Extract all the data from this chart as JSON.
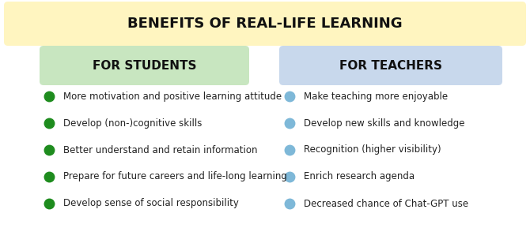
{
  "title": "BENEFITS OF REAL-LIFE LEARNING",
  "title_bg_color": "#FFF5C0",
  "title_fontsize": 13,
  "left_header": "FOR STUDENTS",
  "right_header": "FOR TEACHERS",
  "left_header_bg": "#C8E6C0",
  "right_header_bg": "#C8D8EC",
  "header_fontsize": 11,
  "left_items": [
    "More motivation and positive learning attitude",
    "Develop (non-)cognitive skills",
    "Better understand and retain information",
    "Prepare for future careers and life-long learning",
    "Develop sense of social responsibility"
  ],
  "right_items": [
    "Make teaching more enjoyable",
    "Develop new skills and knowledge",
    "Recognition (higher visibility)",
    "Enrich research agenda",
    "Decreased chance of Chat-GPT use"
  ],
  "left_bullet_color": "#1E8C1E",
  "right_bullet_color": "#7EB8D8",
  "item_fontsize": 8.5,
  "bg_color": "#FFFFFF"
}
